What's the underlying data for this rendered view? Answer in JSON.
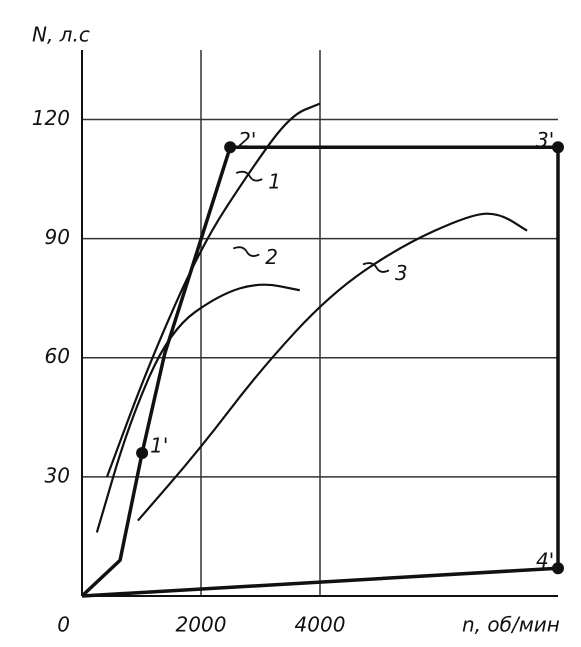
{
  "chart_data": {
    "type": "line",
    "y_label": "N, л.с",
    "x_label": "n, об/мин",
    "xlim": [
      0,
      8000
    ],
    "ylim": [
      0,
      137.5
    ],
    "xticks": [
      0,
      2000,
      4000
    ],
    "yticks": [
      30,
      60,
      90,
      120
    ],
    "grid": true,
    "color": "#111111",
    "series": [
      {
        "x": [
          420,
          1140,
          2000,
          2820,
          3500,
          4000
        ],
        "values": [
          30,
          59,
          88,
          107,
          121,
          124
        ]
      },
      {
        "x": [
          250,
          800,
          1480,
          2320,
          3000,
          3660
        ],
        "values": [
          16,
          44,
          67,
          76,
          79,
          77
        ]
      },
      {
        "x": [
          940,
          1980,
          3000,
          4170,
          5340,
          6520,
          7000,
          7480
        ],
        "values": [
          19,
          37,
          57,
          76,
          88,
          96,
          96.5,
          92
        ]
      },
      {
        "x": [
          0,
          640,
          1010,
          1390,
          2490,
          8000,
          8000,
          0
        ],
        "values": [
          0,
          9,
          36,
          61,
          113,
          113,
          7,
          0
        ],
        "labels": [
          null,
          null,
          "1'",
          null,
          "2'",
          "3'",
          "4'",
          null
        ]
      }
    ],
    "annotations": [
      {
        "text": "1",
        "x": 3130,
        "y": 104
      },
      {
        "text": "2",
        "x": 3080,
        "y": 85
      },
      {
        "text": "3",
        "x": 5260,
        "y": 81
      }
    ]
  }
}
